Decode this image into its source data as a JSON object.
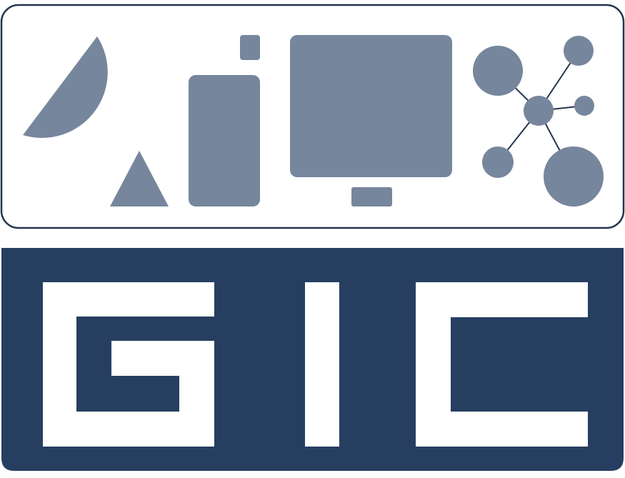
{
  "logo": {
    "text": "GIC",
    "colors": {
      "icon_fill": "#76869c",
      "panel_border": "#24344c",
      "panel_background": "#ffffff",
      "banner_background": "#263f60",
      "letter_fill": "#ffffff"
    },
    "icons": [
      "semicircle-icon",
      "triangle-icon",
      "mobile-phone-icon",
      "computer-monitor-icon",
      "network-graph-icon"
    ]
  }
}
